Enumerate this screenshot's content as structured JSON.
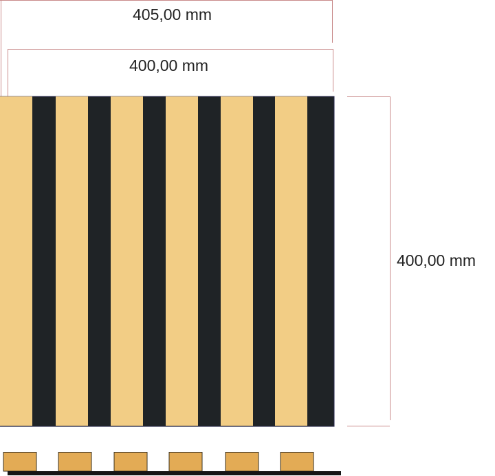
{
  "dimensions": {
    "overall_width": "405,00 mm",
    "panel_width": "400,00 mm",
    "panel_height": "400,00 mm"
  },
  "colors": {
    "slat_front": "#f2cd85",
    "slat_profile": "#e3ab55",
    "felt_backing": "#1f2326",
    "dimension_line": "#c98a8a"
  },
  "panel": {
    "slat_count": 6
  }
}
